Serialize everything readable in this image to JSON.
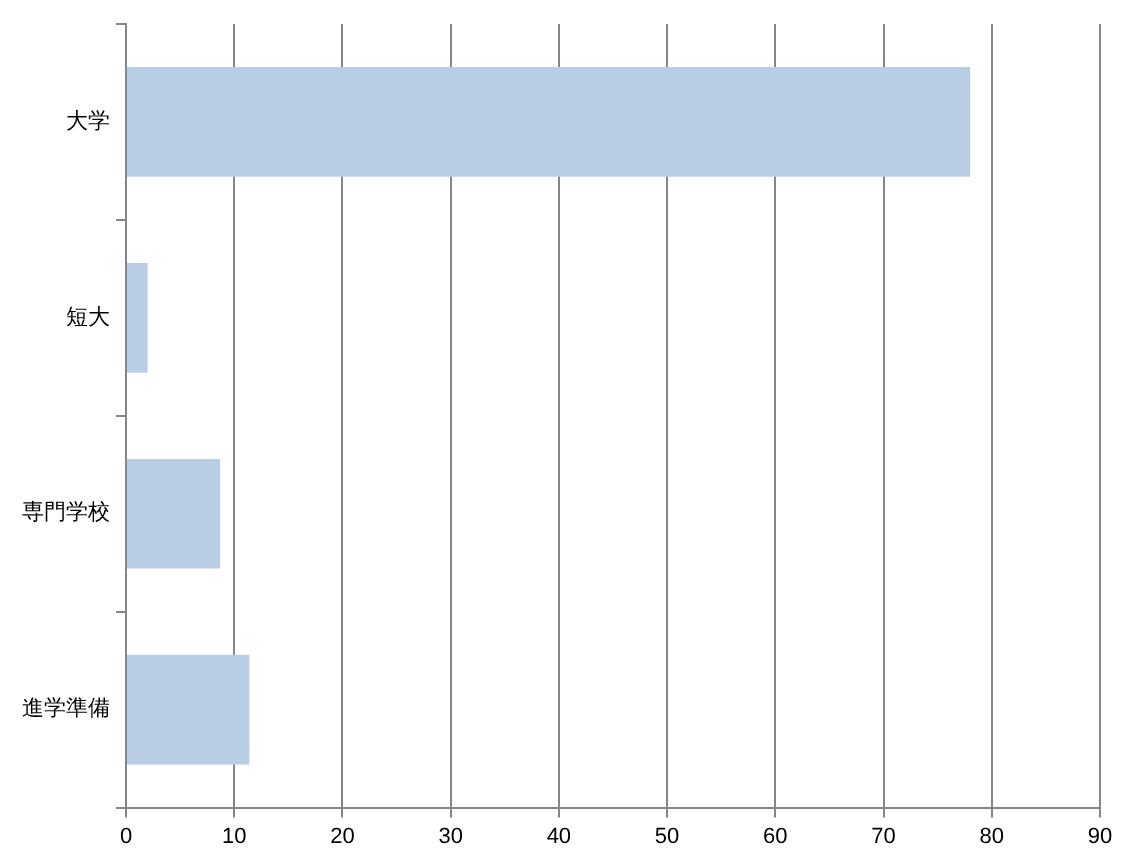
{
  "chart_data": {
    "type": "bar",
    "orientation": "horizontal",
    "categories": [
      "大学",
      "短大",
      "専門学校",
      "進学準備"
    ],
    "values": [
      78,
      2,
      8.7,
      11.4
    ],
    "color": "#b9cde5",
    "xlim": [
      0,
      90
    ],
    "xticks": [
      0,
      10,
      20,
      30,
      40,
      50,
      60,
      70,
      80,
      90
    ],
    "grid": "x",
    "legend": false
  }
}
